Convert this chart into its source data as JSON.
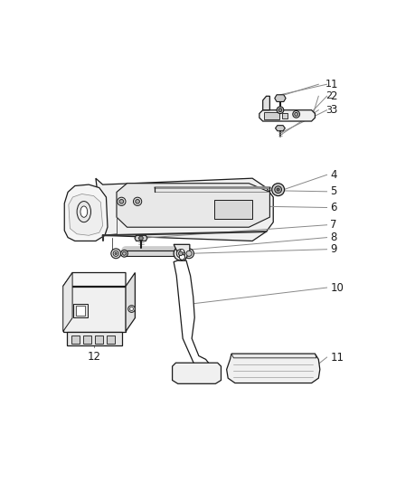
{
  "background_color": "#ffffff",
  "line_color": "#1a1a1a",
  "label_color": "#1a1a1a",
  "leader_line_color": "#888888",
  "fig_width": 4.38,
  "fig_height": 5.33,
  "dpi": 100
}
